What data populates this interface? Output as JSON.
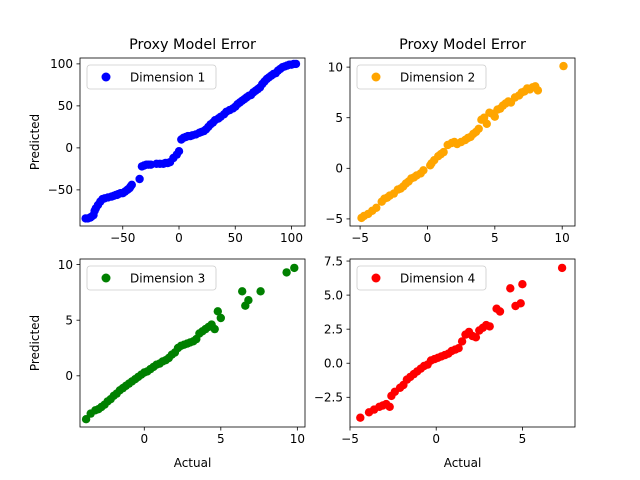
{
  "chart_data": [
    {
      "type": "scatter",
      "title": "Proxy Model Error",
      "xlabel": "",
      "ylabel": "Predicted",
      "xlim": [
        -88,
        112
      ],
      "ylim": [
        -93,
        107
      ],
      "xticks": [
        -50,
        0,
        50,
        100
      ],
      "xtick_labels": [
        "−50",
        "0",
        "50",
        "100"
      ],
      "yticks": [
        -50,
        0,
        50,
        100
      ],
      "ytick_labels": [
        "−50",
        "0",
        "50",
        "100"
      ],
      "legend_position": "top-left",
      "series": [
        {
          "name": "Dimension 1",
          "color": "#0000ff",
          "x": [
            -83,
            -81,
            -79,
            -78,
            -76,
            -75,
            -74,
            -72,
            -70,
            -68,
            -66,
            -63,
            -60,
            -58,
            -56,
            -55,
            -54,
            -52,
            -50,
            -48,
            -46,
            -45,
            -44,
            -43,
            -42,
            -35,
            -33,
            -31,
            -29,
            -27,
            -25,
            -20,
            -17,
            -14,
            -12,
            -10,
            -8,
            -5,
            -2,
            0,
            2,
            4,
            6,
            8,
            10,
            12,
            15,
            18,
            20,
            22,
            24,
            26,
            28,
            30,
            32,
            35,
            37,
            40,
            42,
            45,
            48,
            50,
            52,
            54,
            56,
            58,
            60,
            62,
            64,
            66,
            68,
            70,
            72,
            74,
            76,
            78,
            80,
            82,
            84,
            86,
            88,
            90,
            92,
            94,
            96,
            98,
            100,
            102,
            104
          ],
          "y": [
            -84,
            -84,
            -83,
            -82,
            -80,
            -75,
            -72,
            -68,
            -64,
            -61,
            -60,
            -59,
            -58,
            -57,
            -56,
            -56,
            -55,
            -54,
            -54,
            -52,
            -50,
            -49,
            -48,
            -46,
            -44,
            -37,
            -22,
            -21,
            -20,
            -20,
            -20,
            -19,
            -19,
            -19,
            -18,
            -18,
            -17,
            -12,
            -8,
            -4,
            10,
            12,
            13,
            14,
            14,
            15,
            16,
            18,
            19,
            20,
            22,
            25,
            28,
            30,
            33,
            35,
            37,
            40,
            43,
            45,
            47,
            49,
            52,
            54,
            56,
            58,
            60,
            62,
            63,
            66,
            68,
            70,
            72,
            76,
            79,
            82,
            84,
            86,
            88,
            89,
            92,
            94,
            96,
            97,
            98,
            99,
            99,
            100,
            100
          ]
        }
      ]
    },
    {
      "type": "scatter",
      "title": "Proxy Model Error",
      "xlabel": "",
      "ylabel": "",
      "xlim": [
        -5.75,
        10.95
      ],
      "ylim": [
        -5.7,
        10.9
      ],
      "xticks": [
        -5,
        0,
        5,
        10
      ],
      "xtick_labels": [
        "−5",
        "0",
        "5",
        "10"
      ],
      "yticks": [
        -5,
        0,
        5,
        10
      ],
      "ytick_labels": [
        "−5",
        "0",
        "5",
        "10"
      ],
      "legend_position": "top-left",
      "series": [
        {
          "name": "Dimension 2",
          "color": "#ffa500",
          "x": [
            -4.9,
            -4.7,
            -4.4,
            -4.1,
            -3.8,
            -3.4,
            -3.2,
            -3.0,
            -2.8,
            -2.5,
            -2.2,
            -2.0,
            -1.8,
            -1.6,
            -1.4,
            -1.2,
            -1.0,
            -0.8,
            -0.5,
            -0.3,
            0.2,
            0.3,
            0.5,
            0.8,
            1.0,
            1.2,
            1.5,
            1.8,
            2.0,
            2.2,
            2.5,
            2.8,
            3.0,
            3.2,
            3.4,
            3.6,
            3.8,
            4.0,
            4.2,
            4.4,
            4.6,
            4.8,
            5.0,
            5.2,
            5.4,
            5.6,
            5.8,
            6.0,
            6.2,
            6.5,
            6.8,
            7.0,
            7.2,
            7.4,
            7.6,
            7.8,
            8.0,
            8.2,
            10.1
          ],
          "y": [
            -4.9,
            -4.7,
            -4.5,
            -4.2,
            -3.9,
            -3.3,
            -3.0,
            -2.9,
            -2.7,
            -2.5,
            -2.1,
            -2.0,
            -1.8,
            -1.5,
            -1.3,
            -1.0,
            -0.9,
            -0.7,
            -0.5,
            -0.2,
            0.3,
            0.5,
            0.8,
            1.2,
            1.4,
            1.6,
            2.3,
            2.5,
            2.6,
            2.4,
            2.6,
            2.8,
            3.0,
            3.1,
            3.4,
            3.6,
            3.9,
            4.8,
            5.0,
            4.4,
            5.5,
            5.4,
            5.1,
            5.8,
            5.9,
            6.2,
            6.4,
            6.6,
            6.5,
            7.0,
            7.2,
            7.5,
            7.6,
            7.9,
            7.8,
            8.0,
            8.1,
            7.7,
            10.1
          ]
        }
      ]
    },
    {
      "type": "scatter",
      "title": "",
      "xlabel": "Actual",
      "ylabel": "Predicted",
      "xlim": [
        -4.2,
        10.5
      ],
      "ylim": [
        -4.6,
        10.5
      ],
      "xticks": [
        0,
        5,
        10
      ],
      "xtick_labels": [
        "0",
        "5",
        "10"
      ],
      "yticks": [
        0,
        5,
        10
      ],
      "ytick_labels": [
        "0",
        "5",
        "10"
      ],
      "legend_position": "top-left",
      "series": [
        {
          "name": "Dimension 3",
          "color": "#008000",
          "x": [
            -3.8,
            -3.5,
            -3.2,
            -3.0,
            -2.8,
            -2.6,
            -2.4,
            -2.2,
            -2.0,
            -1.8,
            -1.6,
            -1.4,
            -1.2,
            -1.0,
            -0.8,
            -0.6,
            -0.4,
            -0.2,
            0.0,
            0.2,
            0.4,
            0.6,
            0.8,
            1.0,
            1.2,
            1.4,
            1.6,
            1.8,
            2.0,
            2.2,
            2.4,
            2.6,
            2.8,
            3.0,
            3.2,
            3.4,
            3.6,
            3.8,
            4.0,
            4.2,
            4.4,
            4.6,
            4.8,
            5.0,
            6.4,
            6.6,
            6.8,
            7.6,
            9.3,
            9.8
          ],
          "y": [
            -3.9,
            -3.4,
            -3.1,
            -3.0,
            -2.8,
            -2.6,
            -2.3,
            -2.1,
            -1.8,
            -1.6,
            -1.3,
            -1.1,
            -0.9,
            -0.7,
            -0.5,
            -0.3,
            -0.1,
            0.1,
            0.3,
            0.4,
            0.6,
            0.8,
            1.0,
            1.1,
            1.3,
            1.4,
            1.6,
            1.9,
            2.1,
            2.5,
            2.7,
            2.8,
            2.9,
            3.0,
            3.1,
            3.3,
            3.8,
            4.0,
            4.2,
            4.4,
            4.6,
            4.2,
            5.8,
            5.2,
            7.6,
            6.3,
            6.8,
            7.6,
            9.3,
            9.7
          ]
        }
      ]
    },
    {
      "type": "scatter",
      "title": "",
      "xlabel": "Actual",
      "ylabel": "",
      "xlim": [
        -5.0,
        8.05
      ],
      "ylim": [
        -4.68,
        7.65
      ],
      "xticks": [
        -5,
        0,
        5
      ],
      "xtick_labels": [
        "−5",
        "0",
        "5"
      ],
      "yticks": [
        -2.5,
        0.0,
        2.5,
        5.0,
        7.5
      ],
      "ytick_labels": [
        "−2.5",
        "0.0",
        "2.5",
        "5.0",
        "7.5"
      ],
      "legend_position": "top-left",
      "series": [
        {
          "name": "Dimension 4",
          "color": "#ff0000",
          "x": [
            -4.4,
            -3.9,
            -3.6,
            -3.3,
            -3.1,
            -2.9,
            -2.7,
            -2.6,
            -2.4,
            -2.1,
            -1.9,
            -1.7,
            -1.5,
            -1.3,
            -1.1,
            -0.9,
            -0.7,
            -0.5,
            -0.3,
            -0.1,
            0.1,
            0.3,
            0.5,
            0.7,
            0.9,
            1.1,
            1.3,
            1.5,
            1.7,
            1.9,
            2.1,
            2.3,
            2.5,
            2.7,
            2.9,
            3.1,
            3.5,
            3.7,
            4.3,
            4.6,
            4.9,
            5.0,
            7.3
          ],
          "y": [
            -4.0,
            -3.6,
            -3.4,
            -3.2,
            -3.1,
            -3.0,
            -3.2,
            -2.4,
            -2.1,
            -1.8,
            -1.6,
            -1.2,
            -1.0,
            -0.8,
            -0.6,
            -0.4,
            -0.2,
            -0.1,
            0.2,
            0.3,
            0.4,
            0.5,
            0.6,
            0.7,
            0.9,
            1.0,
            1.1,
            1.6,
            2.1,
            2.3,
            2.0,
            1.9,
            2.4,
            2.6,
            2.8,
            2.7,
            4.0,
            3.8,
            5.5,
            4.2,
            4.4,
            5.8,
            7.0
          ]
        }
      ]
    }
  ]
}
